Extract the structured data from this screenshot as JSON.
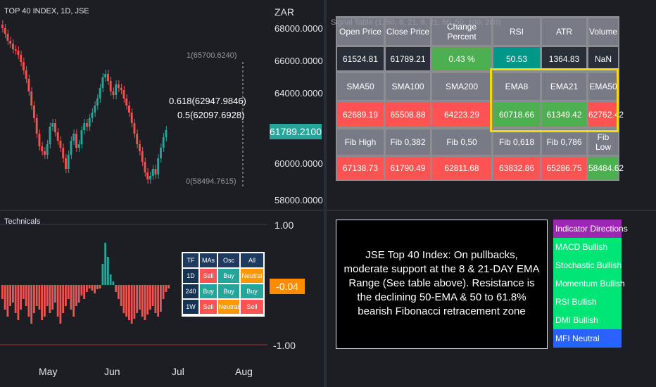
{
  "chart": {
    "title": "TOP 40 INDEX, 1D, JSE",
    "currency": "ZAR",
    "price_axis": [
      "68000.0000",
      "66000.0000",
      "64000.0000",
      "62000.0000",
      "60000.0000",
      "58000.0000"
    ],
    "last_price": "61789.2100",
    "fib_labels": [
      "1(65700.6240)",
      "0.618(62947.9846)",
      "0.5(62097.6928)",
      "0(58494.7615)"
    ],
    "months": [
      "May",
      "Jun",
      "Jul",
      "Aug"
    ],
    "colors": {
      "up": "#26a69a",
      "down": "#ef5350"
    }
  },
  "technicals": {
    "title": "Technicals",
    "axis": [
      "1.00",
      "-1.00"
    ],
    "current": "-0.04",
    "tf_table": {
      "headers": [
        "TF",
        "MAs",
        "Osc",
        "All"
      ],
      "rows": [
        [
          "1D",
          "Sell",
          "Buy",
          "Neutral"
        ],
        [
          "240",
          "Buy",
          "Buy",
          "Buy"
        ],
        [
          "1W",
          "Sell",
          "Neutral",
          "Sell"
        ]
      ]
    }
  },
  "signal_table": {
    "note": "Signal Table (1, 50, 8, 21, 8, 21, 50, 50, 100, 200)",
    "rows": [
      [
        "Open Price",
        "Close Price",
        "Change Percent",
        "RSI",
        "ATR",
        "Volume"
      ],
      [
        "61524.81",
        "61789.21",
        "0.43 %",
        "50.53",
        "1364.83",
        "NaN"
      ],
      [
        "SMA50",
        "SMA100",
        "SMA200",
        "EMA8",
        "EMA21",
        "EMA50"
      ],
      [
        "62689.19",
        "65508.88",
        "64223.29",
        "60718.66",
        "61349.42",
        "62762.42"
      ],
      [
        "Fib High",
        "Fib 0,382",
        "Fib 0,50",
        "Fib 0,618",
        "Fib 0,786",
        "Fib Low"
      ],
      [
        "67138.73",
        "61790.49",
        "62811.68",
        "63832.86",
        "65286.75",
        "58484.62"
      ]
    ]
  },
  "note": {
    "text": "JSE Top 40 Index: On pullbacks, moderate support at the 8 & 21-DAY EMA Range (See table above). Resistance is the declining 50-EMA & 50 to 61.8% bearish Fibonacci retracement zone"
  },
  "directions": {
    "header": "Indicator Directions",
    "items": [
      "MACD Bullish",
      "Stochastic Bullish",
      "Momentum Bullish",
      "RSI Bullish",
      "DMI Bullish",
      "MFI Neutral"
    ]
  }
}
